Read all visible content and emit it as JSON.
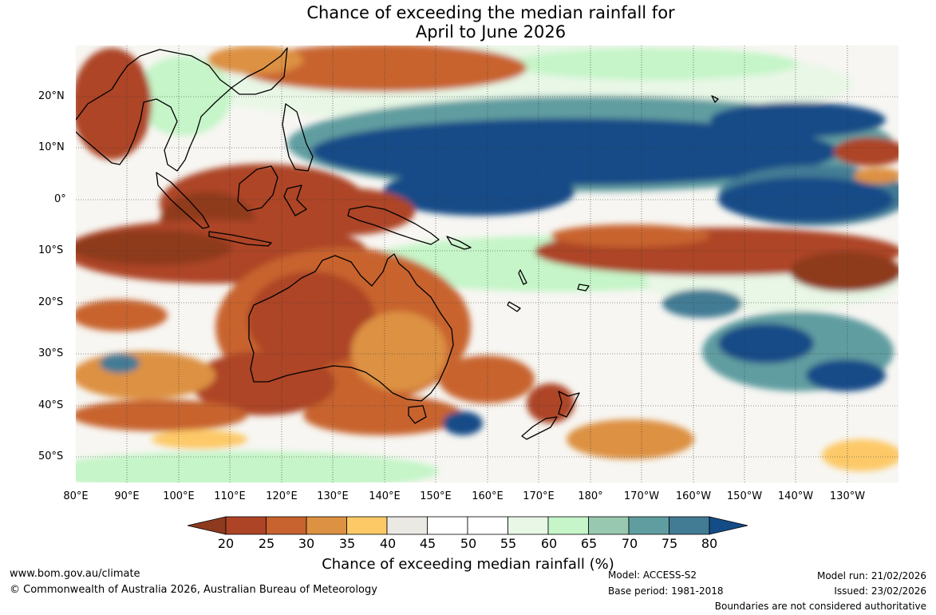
{
  "title_line1": "Chance of exceeding the median rainfall for",
  "title_line2": "April to June 2026",
  "lat_labels": [
    "20°N",
    "10°N",
    "0°",
    "10°S",
    "20°S",
    "30°S",
    "40°S",
    "50°S"
  ],
  "lon_labels": [
    "80°E",
    "90°E",
    "100°E",
    "110°E",
    "120°E",
    "130°E",
    "140°E",
    "150°E",
    "160°E",
    "170°E",
    "180°",
    "170°W",
    "160°W",
    "150°W",
    "140°W",
    "130°W"
  ],
  "colorbar": {
    "ticks": [
      "20",
      "25",
      "30",
      "35",
      "40",
      "45",
      "50",
      "55",
      "60",
      "65",
      "70",
      "75",
      "80"
    ],
    "colors": [
      "#8e3a1f",
      "#ad4426",
      "#c8632f",
      "#dd9143",
      "#fdc967",
      "#ebe9e3",
      "#ffffff",
      "#ffffff",
      "#e8f7e6",
      "#c5f5c8",
      "#98c9b0",
      "#609da0",
      "#427b94",
      "#144c87"
    ],
    "label": "Chance of exceeding median rainfall (%)"
  },
  "footer": {
    "website": "www.bom.gov.au/climate",
    "copyright": "© Commonwealth of Australia 2026, Australian Bureau of Meteorology",
    "model": "Model: ACCESS-S2",
    "base_period": "Base period: 1981-2018",
    "model_run": "Model run: 21/02/2026",
    "issued": "Issued: 23/02/2026",
    "disclaimer": "Boundaries are not considered authoritative"
  }
}
